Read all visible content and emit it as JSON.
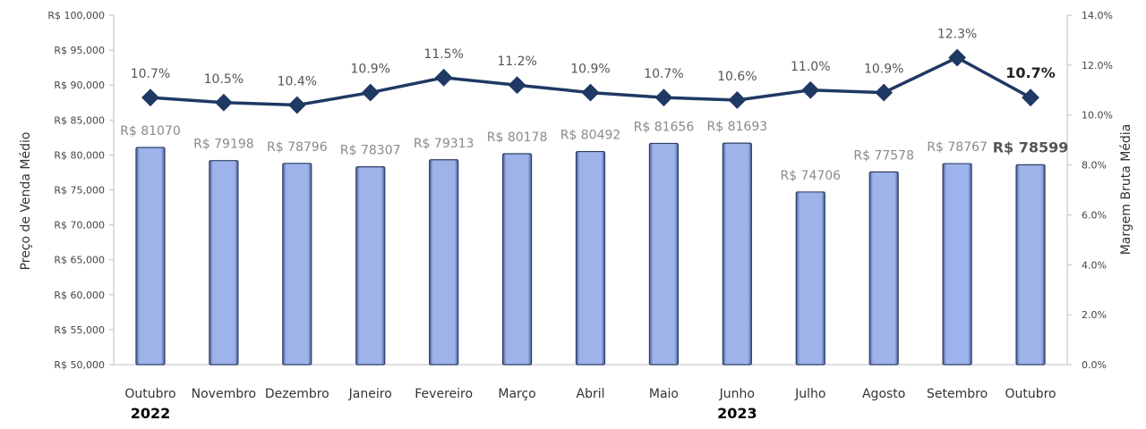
{
  "chart_data": {
    "type": "bar",
    "categories": [
      "Outubro",
      "Novembro",
      "Dezembro",
      "Janeiro",
      "Fevereiro",
      "Março",
      "Abril",
      "Maio",
      "Junho",
      "Julho",
      "Agosto",
      "Setembro",
      "Outubro"
    ],
    "year_labels": [
      {
        "category_index": 0,
        "text": "2022"
      },
      {
        "category_index": 8,
        "text": "2023"
      }
    ],
    "series": [
      {
        "type": "bar",
        "axis": "left",
        "values": [
          81070,
          79198,
          78796,
          78307,
          79313,
          80178,
          80492,
          81656,
          81693,
          74706,
          77578,
          78767,
          78599
        ],
        "value_labels": [
          "R$ 81070",
          "R$ 79198",
          "R$ 78796",
          "R$ 78307",
          "R$ 79313",
          "R$ 80178",
          "R$ 80492",
          "R$ 81656",
          "R$ 81693",
          "R$ 74706",
          "R$ 77578",
          "R$ 78767",
          "R$ 78599"
        ],
        "color": "#9db3ea"
      },
      {
        "type": "line",
        "axis": "right",
        "values": [
          10.7,
          10.5,
          10.4,
          10.9,
          11.5,
          11.2,
          10.9,
          10.7,
          10.6,
          11.0,
          10.9,
          12.3,
          10.7
        ],
        "value_labels": [
          "10.7%",
          "10.5%",
          "10.4%",
          "10.9%",
          "11.5%",
          "11.2%",
          "10.9%",
          "10.7%",
          "10.6%",
          "11.0%",
          "10.9%",
          "12.3%",
          "10.7%"
        ],
        "color": "#1f3864"
      }
    ],
    "highlight_index": 12,
    "ylabel": "Preço de Venda Médio",
    "ylabel_right": "Margem Bruta Média",
    "ylim": [
      50000,
      100000
    ],
    "ylim_right": [
      0,
      14
    ],
    "yticks_left": [
      "R$ 50,000",
      "R$ 55,000",
      "R$ 60,000",
      "R$ 65,000",
      "R$ 70,000",
      "R$ 75,000",
      "R$ 80,000",
      "R$ 85,000",
      "R$ 90,000",
      "R$ 95,000",
      "R$ 100,000"
    ],
    "yticks_right": [
      "0.0%",
      "2.0%",
      "4.0%",
      "6.0%",
      "8.0%",
      "10.0%",
      "12.0%",
      "14.0%"
    ],
    "grid": false,
    "legend": "none"
  }
}
